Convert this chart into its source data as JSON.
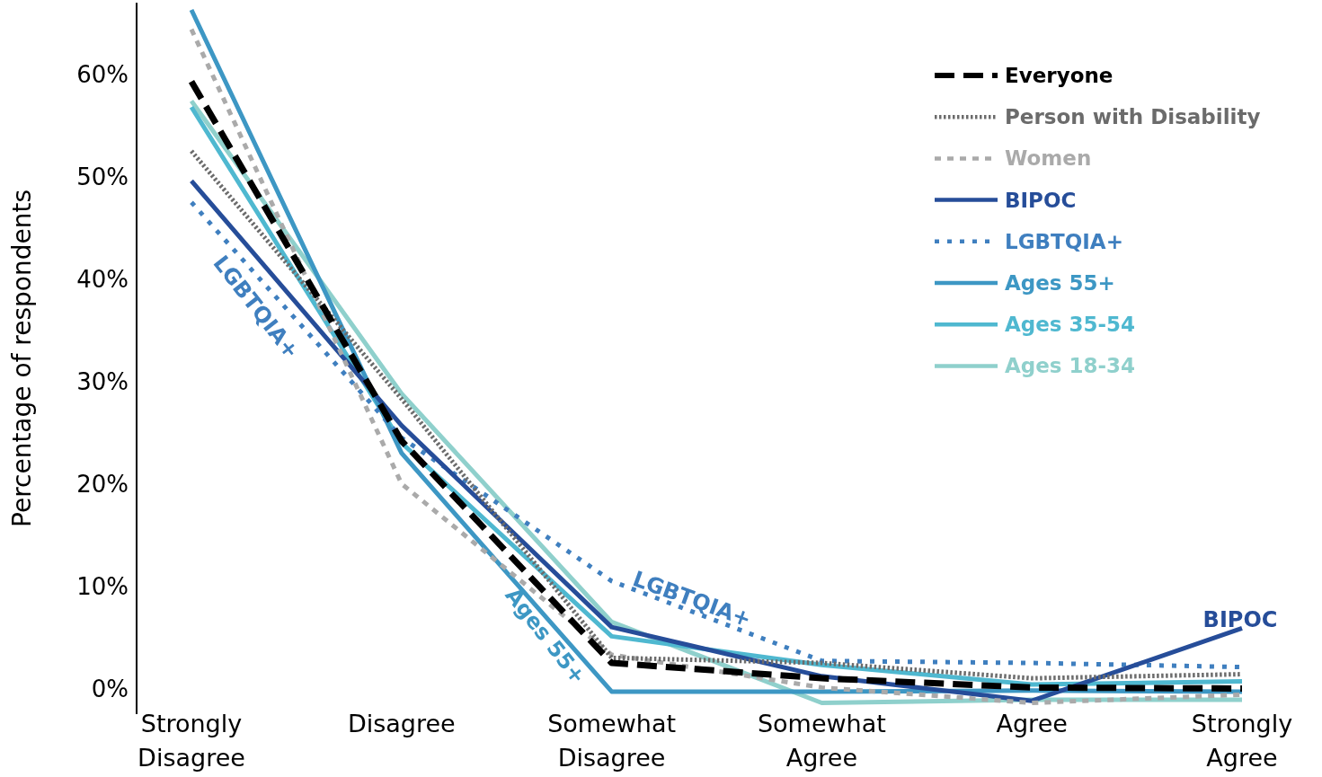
{
  "chart_data": {
    "type": "line",
    "ylabel": "Percentage of respondents",
    "categories": [
      "Strongly Disagree",
      "Disagree",
      "Somewhat Disagree",
      "Somewhat Agree",
      "Agree",
      "Strongly Agree"
    ],
    "ylim": [
      -2.5,
      67
    ],
    "yticks": [
      {
        "value": 0,
        "label": "0%"
      },
      {
        "value": 10,
        "label": "10%"
      },
      {
        "value": 20,
        "label": "20%"
      },
      {
        "value": 30,
        "label": "30%"
      },
      {
        "value": 40,
        "label": "40%"
      },
      {
        "value": 50,
        "label": "50%"
      },
      {
        "value": 60,
        "label": "60%"
      }
    ],
    "grid": false,
    "legend": "top right",
    "marker": "none",
    "series": [
      {
        "name": "Everyone",
        "color": "#000000",
        "line_style": "dashed",
        "values": [
          59.3,
          24.2,
          2.5,
          1.0,
          0.1,
          0.0
        ]
      },
      {
        "name": "Person with Disability",
        "color": "#6b6b6b",
        "line_style": "dotted",
        "values": [
          52.5,
          28.3,
          3.0,
          2.5,
          1.0,
          1.4
        ]
      },
      {
        "name": "Women",
        "color": "#aaaaaa",
        "line_style": "dashed",
        "values": [
          64.4,
          20.0,
          3.3,
          0.1,
          -1.4,
          -0.6
        ]
      },
      {
        "name": "BIPOC",
        "color": "#264d99",
        "line_style": "solid",
        "values": [
          49.6,
          25.7,
          6.0,
          1.2,
          -1.2,
          5.9
        ]
      },
      {
        "name": "LGBTQIA+",
        "color": "#3f7fbf",
        "line_style": "dotted",
        "values": [
          47.5,
          24.5,
          10.5,
          2.7,
          2.5,
          2.1
        ]
      },
      {
        "name": "Ages 55+",
        "color": "#3d97c4",
        "line_style": "solid",
        "values": [
          66.3,
          23.0,
          -0.3,
          -0.3,
          -0.2,
          -0.3
        ]
      },
      {
        "name": "Ages 35-54",
        "color": "#4fb8d0",
        "line_style": "solid",
        "values": [
          56.8,
          24.0,
          5.1,
          2.3,
          0.4,
          0.7
        ]
      },
      {
        "name": "Ages 18-34",
        "color": "#8fd0cc",
        "line_style": "solid",
        "values": [
          57.4,
          28.8,
          6.5,
          -1.4,
          -1.1,
          -1.1
        ]
      }
    ],
    "annotations": [
      "LGBTQIA+",
      "Ages 55+",
      "LGBTQIA+",
      "BIPOC"
    ]
  }
}
